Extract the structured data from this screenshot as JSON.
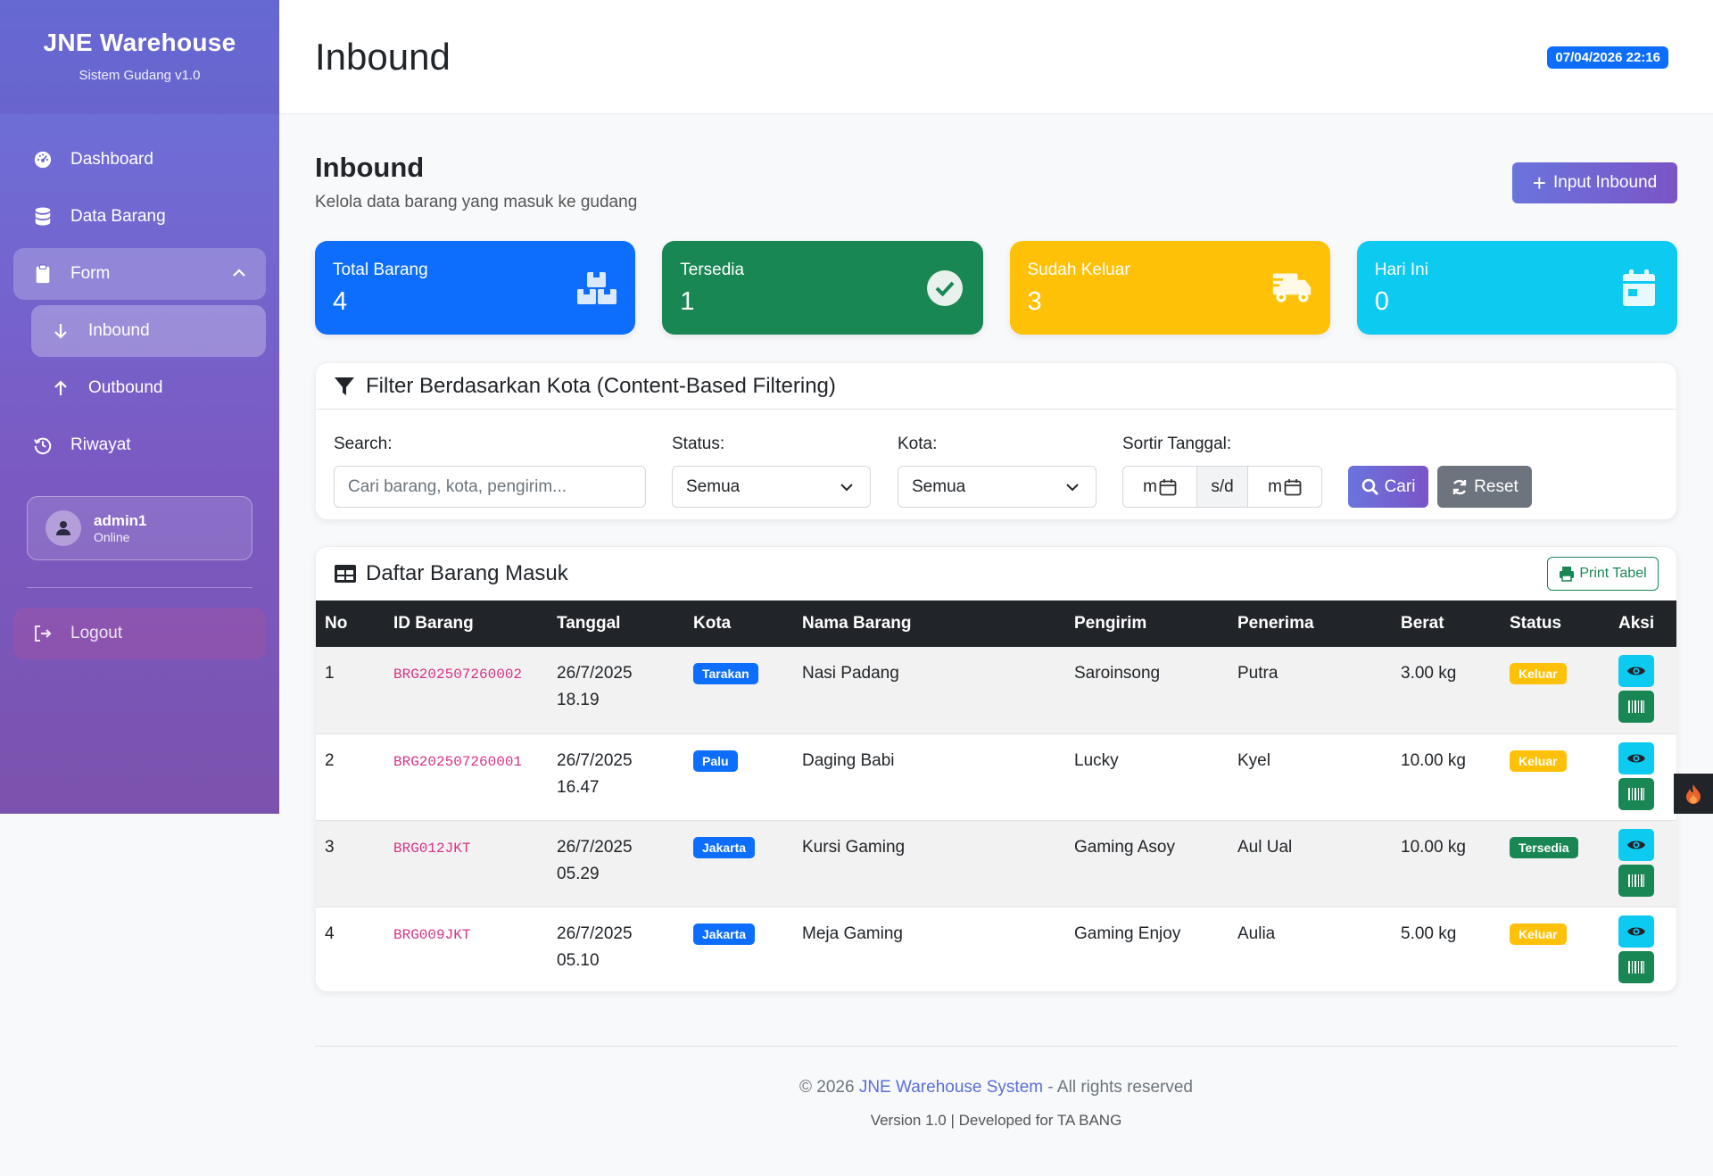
{
  "sidebar": {
    "brand_title": "JNE Warehouse",
    "brand_subtitle": "Sistem Gudang v1.0",
    "items": [
      {
        "label": "Dashboard",
        "icon": "gauge-icon"
      },
      {
        "label": "Data Barang",
        "icon": "database-icon"
      },
      {
        "label": "Form",
        "icon": "clipboard-icon",
        "expanded": true
      },
      {
        "label": "Inbound",
        "icon": "arrow-down-icon",
        "active": true
      },
      {
        "label": "Outbound",
        "icon": "arrow-up-icon"
      },
      {
        "label": "Riwayat",
        "icon": "history-icon"
      }
    ],
    "user": {
      "name": "admin1",
      "status": "Online"
    },
    "logout_label": "Logout"
  },
  "header": {
    "title": "Inbound",
    "datetime": "07/04/2026 22:16"
  },
  "main": {
    "section_title": "Inbound",
    "section_subtitle": "Kelola data barang yang masuk ke gudang",
    "input_button": "Input Inbound",
    "stats": [
      {
        "label": "Total Barang",
        "value": "4",
        "color": "#0d6efd",
        "icon": "boxes-icon"
      },
      {
        "label": "Tersedia",
        "value": "1",
        "color": "#198754",
        "icon": "check-circle-icon"
      },
      {
        "label": "Sudah Keluar",
        "value": "3",
        "color": "#ffc107",
        "icon": "truck-icon"
      },
      {
        "label": "Hari Ini",
        "value": "0",
        "color": "#0dcaf0",
        "icon": "calendar-icon"
      }
    ]
  },
  "filter": {
    "title": "Filter Berdasarkan Kota (Content-Based Filtering)",
    "search_label": "Search:",
    "search_placeholder": "Cari barang, kota, pengirim...",
    "status_label": "Status:",
    "status_value": "Semua",
    "kota_label": "Kota:",
    "kota_value": "Semua",
    "sort_label": "Sortir Tanggal:",
    "date_from": "m",
    "date_sep": "s/d",
    "date_to": "m",
    "search_button": "Cari",
    "reset_button": "Reset"
  },
  "table": {
    "title": "Daftar Barang Masuk",
    "print_button": "Print Tabel",
    "columns": [
      "No",
      "ID Barang",
      "Tanggal",
      "Kota",
      "Nama Barang",
      "Pengirim",
      "Penerima",
      "Berat",
      "Status",
      "Aksi"
    ],
    "rows": [
      {
        "no": "1",
        "id": "BRG202507260002",
        "date": "26/7/2025",
        "time": "18.19",
        "city": "Tarakan",
        "name": "Nasi Padang",
        "sender": "Saroinsong",
        "receiver": "Putra",
        "weight": "3.00 kg",
        "status": "Keluar"
      },
      {
        "no": "2",
        "id": "BRG202507260001",
        "date": "26/7/2025",
        "time": "16.47",
        "city": "Palu",
        "name": "Daging Babi",
        "sender": "Lucky",
        "receiver": "Kyel",
        "weight": "10.00 kg",
        "status": "Keluar"
      },
      {
        "no": "3",
        "id": "BRG012JKT",
        "date": "26/7/2025",
        "time": "05.29",
        "city": "Jakarta",
        "name": "Kursi Gaming",
        "sender": "Gaming Asoy",
        "receiver": "Aul Ual",
        "weight": "10.00 kg",
        "status": "Tersedia"
      },
      {
        "no": "4",
        "id": "BRG009JKT",
        "date": "26/7/2025",
        "time": "05.10",
        "city": "Jakarta",
        "name": "Meja Gaming",
        "sender": "Gaming Enjoy",
        "receiver": "Aulia",
        "weight": "5.00 kg",
        "status": "Keluar"
      }
    ]
  },
  "footer": {
    "copyright_prefix": "© 2026 ",
    "brand_link": "JNE Warehouse System",
    "copyright_suffix": " - All rights reserved",
    "version_line": "Version 1.0 | Developed for TA BANG"
  }
}
